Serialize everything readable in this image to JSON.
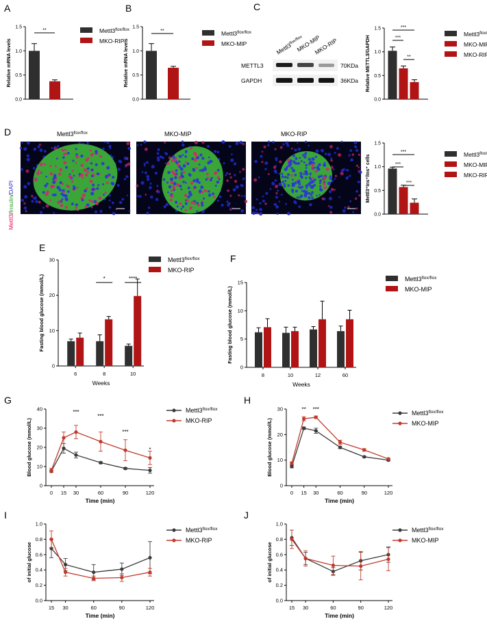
{
  "panel_letters": {
    "A": "A",
    "B": "B",
    "C": "C",
    "D": "D",
    "E": "E",
    "F": "F",
    "G": "G",
    "H": "H",
    "I": "I",
    "J": "J"
  },
  "labels": {
    "ctrl_base": "Mettl3",
    "ctrl_sup": "flox/flox",
    "mip": "MKO-MIP",
    "rip": "MKO-RIP",
    "ylabel_mrna": "Relative mRNA levels",
    "ylabel_c": "Relative METTL3/GAPDH",
    "ylabel_d": "Mettl3⁺Ins⁺/Ins⁺ cells",
    "ylabel_fbg": "Fasting blood glucose (mmol/L)",
    "ylabel_bg": "Blood glucose (mmol/L)",
    "ylabel_init": "of initial glucose",
    "xlabel_weeks": "Weeks",
    "xlabel_time": "Time (min)"
  },
  "blot": {
    "lanes": [
      "Mettl3",
      "MKO-MIP",
      "MKO-RIP"
    ],
    "lane1_sup": "flox/flox",
    "rows": [
      "METTL3",
      "GAPDH"
    ],
    "sizes": [
      "70KDa",
      "36KDa"
    ]
  },
  "micro": {
    "titles": [
      "Mettl3",
      "MKO-MIP",
      "MKO-RIP"
    ],
    "title1_sup": "flox/flox",
    "stain_parts": [
      "Mettl3",
      "/",
      "Insulin",
      "/",
      "DAPI"
    ]
  },
  "colors": {
    "ctrl": "#2f2f2f",
    "ko": "#b01414",
    "ctrl_line": "#3a3a3a",
    "ko_line": "#c0392b"
  },
  "chart_data": [
    {
      "panel": "A",
      "type": "bar",
      "categories": [
        "Mettl3 flox/flox",
        "MKO-RIP"
      ],
      "values": [
        1.0,
        0.37
      ],
      "errors": [
        0.15,
        0.03
      ],
      "ylabel": "Relative mRNA levels",
      "ylim": [
        0,
        1.5
      ],
      "yticks": [
        0.0,
        0.5,
        1.0,
        1.5
      ],
      "significance": [
        {
          "pair": [
            0,
            1
          ],
          "label": "**"
        }
      ],
      "legend": [
        "Mettl3 flox/flox",
        "MKO-RIP"
      ]
    },
    {
      "panel": "B",
      "type": "bar",
      "categories": [
        "Mettl3 flox/flox",
        "MKO-MIP"
      ],
      "values": [
        1.0,
        0.65
      ],
      "errors": [
        0.15,
        0.03
      ],
      "ylabel": "Relative mRNA levels",
      "ylim": [
        0,
        1.5
      ],
      "yticks": [
        0.0,
        0.5,
        1.0,
        1.5
      ],
      "significance": [
        {
          "pair": [
            0,
            1
          ],
          "label": "**"
        }
      ],
      "legend": [
        "Mettl3 flox/flox",
        "MKO-MIP"
      ]
    },
    {
      "panel": "C",
      "type": "bar",
      "categories": [
        "Mettl3 flox/flox",
        "MKO-MIP",
        "MKO-RIP"
      ],
      "values": [
        1.02,
        0.65,
        0.36
      ],
      "errors": [
        0.08,
        0.05,
        0.05
      ],
      "ylabel": "Relative METTL3/GAPDH",
      "ylim": [
        0,
        1.5
      ],
      "yticks": [
        0.0,
        0.5,
        1.0,
        1.5
      ],
      "significance": [
        {
          "pair": [
            0,
            2
          ],
          "label": "***"
        },
        {
          "pair": [
            0,
            1
          ],
          "label": "***"
        },
        {
          "pair": [
            1,
            2
          ],
          "label": "**"
        }
      ],
      "legend": [
        "Mettl3 flox/flox",
        "MKO-MIP",
        "MKO-RIP"
      ]
    },
    {
      "panel": "D",
      "type": "bar",
      "categories": [
        "Mettl3 flox/flox",
        "MKO-MIP",
        "MKO-RIP"
      ],
      "values": [
        0.96,
        0.57,
        0.24
      ],
      "errors": [
        0.03,
        0.04,
        0.08
      ],
      "ylabel": "Mettl3+Ins+/Ins+ cells",
      "ylim": [
        0,
        1.5
      ],
      "yticks": [
        0.0,
        0.5,
        1.0,
        1.5
      ],
      "significance": [
        {
          "pair": [
            0,
            2
          ],
          "label": "***"
        },
        {
          "pair": [
            0,
            1
          ],
          "label": "***"
        },
        {
          "pair": [
            1,
            2
          ],
          "label": "***"
        }
      ],
      "legend": [
        "Mettl3 flox/flox",
        "MKO-MIP",
        "MKO-RIP"
      ]
    },
    {
      "panel": "E",
      "type": "bar",
      "categories": [
        "6",
        "8",
        "10"
      ],
      "series": [
        {
          "name": "Mettl3 flox/flox",
          "values": [
            7.0,
            7.0,
            5.7
          ],
          "errors": [
            0.6,
            1.8,
            0.5
          ]
        },
        {
          "name": "MKO-RIP",
          "values": [
            8.0,
            13.2,
            19.8
          ],
          "errors": [
            1.3,
            0.8,
            4.8
          ]
        }
      ],
      "xlabel": "Weeks",
      "ylabel": "Fasting blood glucose (mmol/L)",
      "ylim": [
        0,
        30
      ],
      "yticks": [
        0,
        10,
        20,
        30
      ],
      "significance": [
        {
          "category": 1,
          "label": "*"
        },
        {
          "category": 2,
          "label": "****"
        }
      ]
    },
    {
      "panel": "F",
      "type": "bar",
      "categories": [
        "8",
        "10",
        "12",
        "60"
      ],
      "series": [
        {
          "name": "Mettl3 flox/flox",
          "values": [
            6.2,
            6.1,
            6.7,
            6.4
          ],
          "errors": [
            0.8,
            1.0,
            0.5,
            0.9
          ]
        },
        {
          "name": "MKO-MIP",
          "values": [
            7.1,
            6.4,
            8.5,
            8.5
          ],
          "errors": [
            1.5,
            0.7,
            3.2,
            1.6
          ]
        }
      ],
      "xlabel": "Weeks",
      "ylabel": "Fasting blood glucose (mmol/L)",
      "ylim": [
        0,
        15
      ],
      "yticks": [
        0,
        5,
        10,
        15
      ]
    },
    {
      "panel": "G",
      "type": "line",
      "x": [
        0,
        15,
        30,
        60,
        90,
        120
      ],
      "series": [
        {
          "name": "Mettl3 flox/flox",
          "values": [
            7.5,
            19.5,
            16.0,
            12.0,
            9.0,
            8.0
          ],
          "errors": [
            0.5,
            2.5,
            1.5,
            0.5,
            0.5,
            1.5
          ]
        },
        {
          "name": "MKO-RIP",
          "values": [
            8.0,
            25.0,
            28.0,
            23.0,
            18.5,
            14.5
          ],
          "errors": [
            1.0,
            3.0,
            3.5,
            5.0,
            5.5,
            3.5
          ]
        }
      ],
      "xlabel": "Time (min)",
      "ylabel": "Blood glucose (mmol/L)",
      "ylim": [
        0,
        40
      ],
      "yticks": [
        0,
        10,
        20,
        30,
        40
      ],
      "xticks": [
        0,
        15,
        30,
        60,
        90,
        120
      ],
      "significance": [
        {
          "x": 30,
          "label": "***"
        },
        {
          "x": 60,
          "label": "***"
        },
        {
          "x": 90,
          "label": "***"
        },
        {
          "x": 120,
          "label": "*"
        }
      ]
    },
    {
      "panel": "H",
      "type": "line",
      "x": [
        0,
        15,
        30,
        60,
        90,
        120
      ],
      "series": [
        {
          "name": "Mettl3 flox/flox",
          "values": [
            7.5,
            22.5,
            21.5,
            15.0,
            11.3,
            10.0
          ],
          "errors": [
            0.5,
            0.5,
            1.0,
            0.5,
            0.3,
            0.3
          ]
        },
        {
          "name": "MKO-MIP",
          "values": [
            8.8,
            26.2,
            26.8,
            17.0,
            14.0,
            10.5
          ],
          "errors": [
            0.5,
            0.8,
            0.5,
            0.8,
            0.5,
            0.3
          ]
        }
      ],
      "xlabel": "Time (min)",
      "ylabel": "Blood glucose (mmol/L)",
      "ylim": [
        0,
        30
      ],
      "yticks": [
        0,
        10,
        20,
        30
      ],
      "xticks": [
        0,
        15,
        30,
        60,
        90,
        120
      ],
      "significance": [
        {
          "x": 15,
          "label": "**"
        },
        {
          "x": 30,
          "label": "***"
        }
      ]
    },
    {
      "panel": "I",
      "type": "line",
      "x": [
        15,
        30,
        60,
        90,
        120
      ],
      "series": [
        {
          "name": "Mettl3 flox/flox",
          "values": [
            0.68,
            0.47,
            0.37,
            0.41,
            0.56
          ],
          "errors": [
            0.12,
            0.08,
            0.1,
            0.08,
            0.21
          ]
        },
        {
          "name": "MKO-RIP",
          "values": [
            0.8,
            0.37,
            0.29,
            0.3,
            0.37
          ],
          "errors": [
            0.11,
            0.05,
            0.03,
            0.05,
            0.05
          ]
        }
      ],
      "xlabel": "Time (min)",
      "ylabel": "of initial glucose",
      "ylim": [
        0,
        1.0
      ],
      "yticks": [
        0.0,
        0.2,
        0.4,
        0.6,
        0.8,
        1.0
      ],
      "xticks": [
        15,
        30,
        60,
        90,
        120
      ]
    },
    {
      "panel": "J",
      "type": "line",
      "x": [
        15,
        30,
        60,
        90,
        120
      ],
      "series": [
        {
          "name": "Mettl3 flox/flox",
          "values": [
            0.82,
            0.55,
            0.38,
            0.52,
            0.6
          ],
          "errors": [
            0.1,
            0.08,
            0.05,
            0.12,
            0.1
          ]
        },
        {
          "name": "MKO-MIP",
          "values": [
            0.8,
            0.55,
            0.46,
            0.45,
            0.54
          ],
          "errors": [
            0.12,
            0.1,
            0.12,
            0.18,
            0.15
          ]
        }
      ],
      "xlabel": "Time (min)",
      "ylabel": "of initial glucose",
      "ylim": [
        0,
        1.0
      ],
      "yticks": [
        0.0,
        0.2,
        0.4,
        0.6,
        0.8,
        1.0
      ],
      "xticks": [
        15,
        30,
        60,
        90,
        120
      ]
    }
  ]
}
